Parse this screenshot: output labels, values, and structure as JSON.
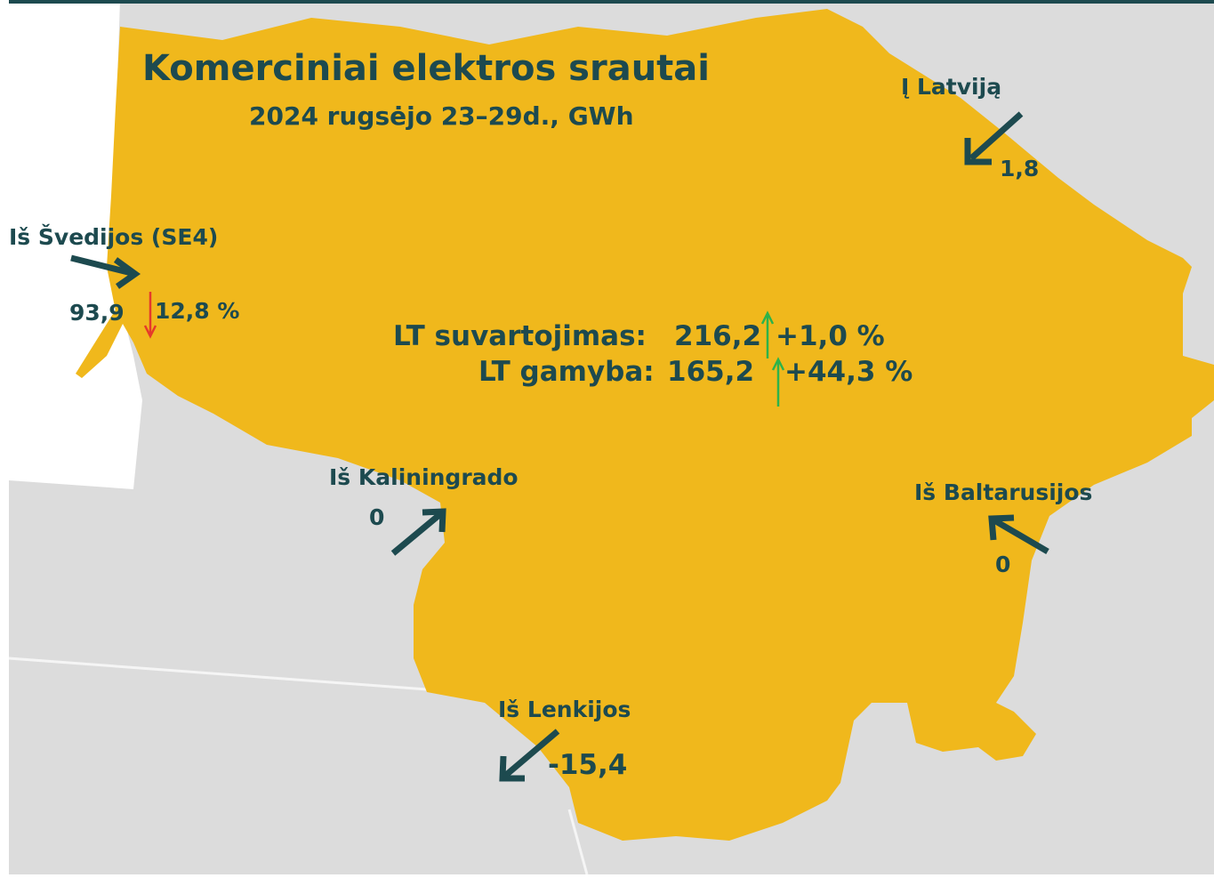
{
  "header": {
    "title": "Komerciniai elektros srautai",
    "subtitle": "2024 rugsėjo 23–29d., GWh"
  },
  "flows": [
    {
      "label": "Į Latviją",
      "value": "1,8"
    },
    {
      "label": "Iš Švedijos (SE4)",
      "value": "93,9",
      "change": "12,8 %"
    },
    {
      "label": "Iš Kaliningrado",
      "value": "0"
    },
    {
      "label": "Iš Baltarusijos",
      "value": "0"
    },
    {
      "label": "Iš Lenkijos",
      "value": "-15,4"
    }
  ],
  "summary": [
    {
      "label": "LT suvartojimas:",
      "value": "216,2",
      "change": "+1,0 %"
    },
    {
      "label": "LT gamyba:",
      "value": "165,2",
      "change": "+44,3 %"
    }
  ]
}
